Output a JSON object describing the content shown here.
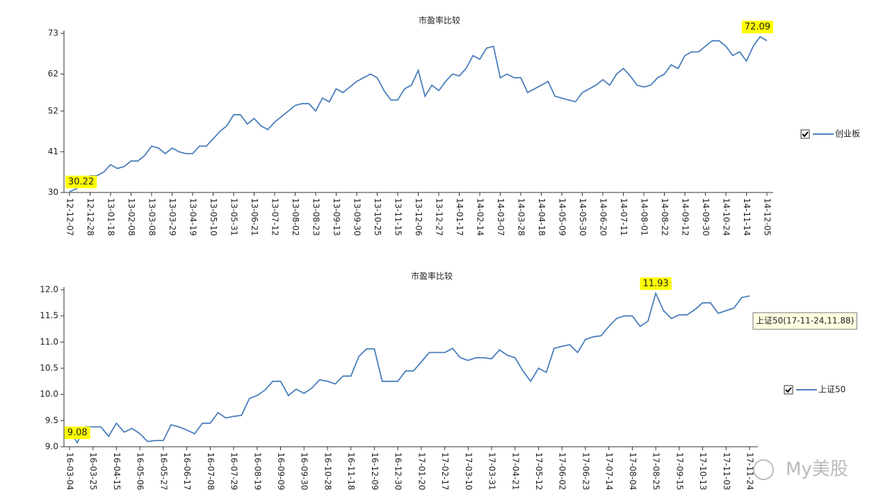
{
  "chart_data": [
    {
      "type": "line",
      "title": "市盈率比较",
      "categories": [
        "12-12-07",
        null,
        null,
        "12-12-28",
        null,
        null,
        "13-01-18",
        null,
        null,
        "13-02-08",
        null,
        null,
        "13-03-08",
        null,
        null,
        "13-03-29",
        null,
        null,
        "13-04-19",
        null,
        null,
        "13-05-10",
        null,
        null,
        "13-05-31",
        null,
        null,
        "13-06-21",
        null,
        null,
        "13-07-12",
        null,
        null,
        "13-08-02",
        null,
        null,
        "13-08-23",
        null,
        null,
        "13-09-13",
        null,
        null,
        "13-09-30",
        null,
        null,
        "13-10-25",
        null,
        null,
        "13-11-15",
        null,
        null,
        "13-12-06",
        null,
        null,
        "13-12-27",
        null,
        null,
        "14-01-17",
        null,
        null,
        "14-02-14",
        null,
        null,
        "14-03-07",
        null,
        null,
        "14-03-28",
        null,
        null,
        "14-04-18",
        null,
        null,
        "14-05-09",
        null,
        null,
        "14-05-30",
        null,
        null,
        "14-06-20",
        null,
        null,
        "14-07-11",
        null,
        null,
        "14-08-01",
        null,
        null,
        "14-08-22",
        null,
        null,
        "14-09-12",
        null,
        null,
        "14-09-30",
        null,
        null,
        "14-10-24",
        null,
        null,
        "14-11-14",
        null,
        null,
        "14-12-05"
      ],
      "series": [
        {
          "name": "创业板",
          "color": "#4a7ebb",
          "values": [
            30.22,
            31,
            33,
            34.5,
            34.5,
            35.5,
            37.5,
            36.5,
            37,
            38.5,
            38.5,
            40,
            42.5,
            42,
            40.5,
            42,
            41,
            40.5,
            40.5,
            42.5,
            42.5,
            44.5,
            46.5,
            48,
            51,
            51,
            48.5,
            50,
            48,
            47,
            49,
            50.5,
            52,
            53.5,
            54,
            54,
            52,
            55.5,
            54.5,
            58,
            57,
            58.5,
            60,
            61,
            62,
            61,
            57.5,
            55,
            55,
            58,
            59,
            63,
            56,
            59,
            57.5,
            60,
            62,
            61.5,
            63.5,
            67,
            66,
            69,
            69.5,
            61,
            62,
            61,
            61,
            57,
            58,
            59,
            60,
            56,
            55.5,
            55,
            54.5,
            57,
            58,
            59,
            60.5,
            59,
            62,
            63.5,
            61.5,
            59,
            58.5,
            59,
            61,
            62,
            64.5,
            63.5,
            67,
            68,
            68,
            69.5,
            71,
            71,
            69.5,
            67,
            68,
            65.5,
            69.5,
            72.09,
            71
          ],
          "value_labels": [
            "30.22",
            null,
            null,
            null,
            null,
            null,
            null,
            null,
            null,
            null,
            null,
            null,
            null,
            null,
            null,
            null,
            null,
            null,
            null,
            null,
            null,
            null,
            null,
            null,
            null,
            null,
            null,
            null,
            null,
            null,
            null,
            null,
            null,
            null,
            null,
            null,
            null,
            null,
            null,
            null,
            null,
            null,
            null,
            null,
            null,
            null,
            null,
            null,
            null,
            null,
            null,
            null,
            null,
            null,
            null,
            null,
            null,
            null,
            null,
            null,
            null,
            null,
            null,
            null,
            null,
            null,
            null,
            null,
            null,
            null,
            null,
            null,
            null,
            null,
            null,
            null,
            null,
            null,
            null,
            null,
            null,
            null,
            null,
            null,
            null,
            null,
            null,
            null,
            null,
            null,
            null,
            null,
            null,
            null,
            null,
            null,
            null,
            null,
            null,
            null,
            null,
            "72.09",
            null
          ]
        }
      ],
      "ylim": [
        30,
        73
      ],
      "yticks": [
        30,
        41,
        52,
        62,
        73
      ],
      "legend": "right"
    },
    {
      "type": "line",
      "title": "市盈率比较",
      "categories": [
        "16-03-04",
        null,
        null,
        "16-03-25",
        null,
        null,
        "16-04-15",
        null,
        null,
        "16-05-06",
        null,
        null,
        "16-05-27",
        null,
        null,
        "16-06-17",
        null,
        null,
        "16-07-08",
        null,
        null,
        "16-07-29",
        null,
        null,
        "16-08-19",
        null,
        null,
        "16-09-09",
        null,
        null,
        "16-09-30",
        null,
        null,
        "16-10-28",
        null,
        null,
        "16-11-18",
        null,
        null,
        "16-12-09",
        null,
        null,
        "16-12-30",
        null,
        null,
        "17-01-20",
        null,
        null,
        "17-02-17",
        null,
        null,
        "17-03-10",
        null,
        null,
        "17-03-31",
        null,
        null,
        "17-04-21",
        null,
        null,
        "17-05-12",
        null,
        null,
        "17-06-02",
        null,
        null,
        "17-06-23",
        null,
        null,
        "17-07-14",
        null,
        null,
        "17-08-04",
        null,
        null,
        "17-08-25",
        null,
        null,
        "17-09-15",
        null,
        null,
        "17-10-13",
        null,
        null,
        "17-11-03",
        null,
        null,
        "17-11-24"
      ],
      "series": [
        {
          "name": "上证50",
          "color": "#4a7ebb",
          "values": [
            9.3,
            9.08,
            9.38,
            9.38,
            9.38,
            9.2,
            9.45,
            9.28,
            9.35,
            9.25,
            9.1,
            9.12,
            9.12,
            9.42,
            9.38,
            9.32,
            9.25,
            9.45,
            9.45,
            9.65,
            9.55,
            9.58,
            9.6,
            9.92,
            9.98,
            10.08,
            10.25,
            10.25,
            9.98,
            10.1,
            10.02,
            10.12,
            10.28,
            10.25,
            10.2,
            10.35,
            10.35,
            10.72,
            10.87,
            10.87,
            10.25,
            10.25,
            10.25,
            10.45,
            10.45,
            10.62,
            10.8,
            10.8,
            10.8,
            10.88,
            10.7,
            10.65,
            10.7,
            10.7,
            10.68,
            10.85,
            10.75,
            10.7,
            10.45,
            10.25,
            10.5,
            10.42,
            10.88,
            10.92,
            10.95,
            10.8,
            11.05,
            11.1,
            11.12,
            11.3,
            11.45,
            11.5,
            11.5,
            11.3,
            11.4,
            11.93,
            11.6,
            11.45,
            11.52,
            11.52,
            11.62,
            11.75,
            11.75,
            11.55,
            11.6,
            11.65,
            11.85,
            11.88
          ],
          "value_labels": [
            null,
            "9.08",
            null,
            null,
            null,
            null,
            null,
            null,
            null,
            null,
            null,
            null,
            null,
            null,
            null,
            null,
            null,
            null,
            null,
            null,
            null,
            null,
            null,
            null,
            null,
            null,
            null,
            null,
            null,
            null,
            null,
            null,
            null,
            null,
            null,
            null,
            null,
            null,
            null,
            null,
            null,
            null,
            null,
            null,
            null,
            null,
            null,
            null,
            null,
            null,
            null,
            null,
            null,
            null,
            null,
            null,
            null,
            null,
            null,
            null,
            null,
            null,
            null,
            null,
            null,
            null,
            null,
            null,
            null,
            null,
            null,
            null,
            null,
            null,
            null,
            "11.93",
            null,
            null,
            null,
            null,
            null,
            null,
            null,
            null,
            null,
            null,
            null,
            null
          ]
        }
      ],
      "ylim": [
        9,
        12
      ],
      "yticks": [
        {
          "value": 9,
          "label": "9.0"
        },
        9.5,
        {
          "value": 10,
          "label": "10.0"
        },
        10.5,
        {
          "value": 11,
          "label": "11.0"
        },
        11.5,
        {
          "value": 12,
          "label": "12.0"
        }
      ],
      "tooltip": "上证50(17-11-24,11.88)",
      "legend": "right"
    }
  ],
  "watermark": "My美股"
}
